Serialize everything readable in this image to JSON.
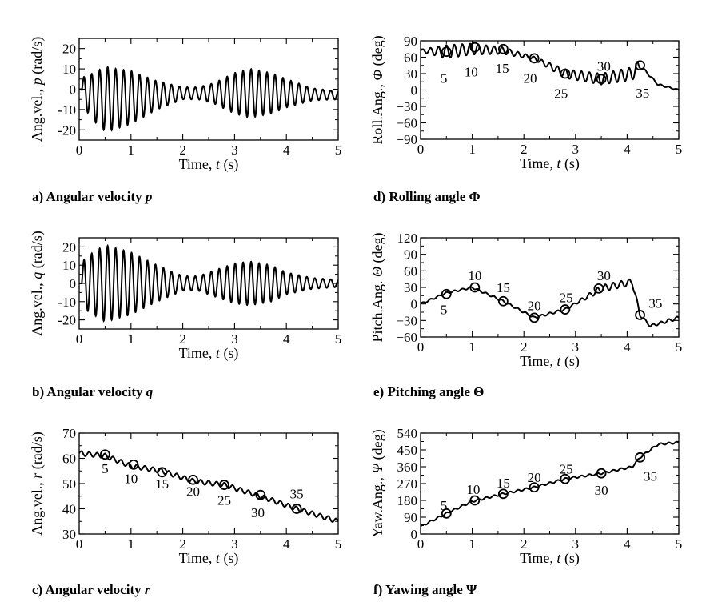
{
  "chart_data": [
    {
      "id": "a",
      "type": "line",
      "caption": "a) Angular velocity",
      "caption_symbol": "p",
      "ylabel_prefix": "Ang.vel., ",
      "ylabel_symbol": "p",
      "ylabel_suffix": " (rad/s)",
      "xlabel_prefix": "Time, ",
      "xlabel_symbol": "t",
      "xlabel_suffix": " (s)",
      "xlim": [
        0,
        5
      ],
      "ylim": [
        -25,
        25
      ],
      "xticks": [
        0,
        1,
        2,
        3,
        4,
        5
      ],
      "yticks": [
        -20,
        -10,
        0,
        10,
        20
      ],
      "ytick_labels": [
        "-20",
        "-10",
        "0",
        "10",
        "20"
      ],
      "signal": {
        "kind": "beating_oscillation",
        "start_time": 0.05,
        "frequency_hz": 6.5,
        "offset": -5,
        "envelope_t": [
          0,
          0.1,
          0.5,
          1.0,
          1.5,
          2.0,
          2.3,
          2.6,
          3.0,
          3.3,
          3.7,
          4.0,
          4.5,
          5.0
        ],
        "envelope_amp": [
          0,
          8,
          16,
          13,
          7,
          3,
          3,
          5,
          10,
          12,
          10,
          7,
          3,
          2
        ],
        "offset_t": [
          0,
          0.3,
          0.6,
          1.0,
          1.5,
          2.0,
          3.0,
          4.0,
          5.0
        ],
        "offset_v": [
          0,
          -4,
          -5,
          -4,
          -3,
          -2,
          -2,
          -2,
          -3
        ]
      },
      "markers": [],
      "annotations": []
    },
    {
      "id": "b",
      "type": "line",
      "caption": "b) Angular velocity",
      "caption_symbol": "q",
      "ylabel_prefix": "Ang.vel., ",
      "ylabel_symbol": "q",
      "ylabel_suffix": " (rad/s)",
      "xlabel_prefix": "Time, ",
      "xlabel_symbol": "t",
      "xlabel_suffix": " (s)",
      "xlim": [
        0,
        5
      ],
      "ylim": [
        -25,
        25
      ],
      "xticks": [
        0,
        1,
        2,
        3,
        4,
        5
      ],
      "yticks": [
        -20,
        -10,
        0,
        10,
        20
      ],
      "ytick_labels": [
        "-20",
        "-10",
        "0",
        "10",
        "20"
      ],
      "signal": {
        "kind": "beating_oscillation",
        "start_time": 0.05,
        "frequency_hz": 6.5,
        "envelope_t": [
          0,
          0.1,
          0.5,
          1.0,
          1.5,
          2.0,
          2.3,
          2.6,
          3.0,
          3.3,
          3.7,
          4.0,
          4.5,
          5.0
        ],
        "envelope_amp": [
          0,
          14,
          21,
          17,
          10,
          4,
          4,
          7,
          11,
          12,
          10,
          6,
          3,
          2
        ],
        "offset_t": [
          0,
          5
        ],
        "offset_v": [
          0,
          0
        ]
      },
      "markers": [],
      "annotations": []
    },
    {
      "id": "c",
      "type": "line",
      "caption": "c) Angular velocity",
      "caption_symbol": "r",
      "ylabel_prefix": "Ang.vel., ",
      "ylabel_symbol": "r",
      "ylabel_suffix": " (rad/s)",
      "xlabel_prefix": "Time, ",
      "xlabel_symbol": "t",
      "xlabel_suffix": " (s)",
      "xlim": [
        0,
        5
      ],
      "ylim": [
        30,
        70
      ],
      "xticks": [
        0,
        1,
        2,
        3,
        4,
        5
      ],
      "yticks": [
        30,
        40,
        50,
        60,
        70
      ],
      "ytick_labels": [
        "30",
        "40",
        "50",
        "60",
        "70"
      ],
      "signal": {
        "kind": "trend_with_ripple",
        "frequency_hz": 6.5,
        "trend_t": [
          0,
          0.5,
          1.0,
          1.6,
          2.2,
          2.8,
          3.5,
          4.2,
          5.0
        ],
        "trend_v": [
          62,
          61,
          57,
          55,
          51,
          49.5,
          45,
          40,
          35
        ],
        "ripple_amp": 0.9
      },
      "markers": [
        {
          "t": 0.5,
          "v": 61.5,
          "label": "5"
        },
        {
          "t": 1.05,
          "v": 57.5,
          "label": "10"
        },
        {
          "t": 1.6,
          "v": 54.5,
          "label": "15"
        },
        {
          "t": 2.2,
          "v": 51.5,
          "label": "20"
        },
        {
          "t": 2.8,
          "v": 49.5,
          "label": "25"
        },
        {
          "t": 3.5,
          "v": 45.5,
          "label": "30"
        },
        {
          "t": 4.2,
          "v": 40,
          "label": "35"
        }
      ],
      "annotations": [
        {
          "t": 0.5,
          "v": 56,
          "label": "5"
        },
        {
          "t": 1.0,
          "v": 52,
          "label": "10"
        },
        {
          "t": 1.6,
          "v": 50,
          "label": "15"
        },
        {
          "t": 2.2,
          "v": 47,
          "label": "20"
        },
        {
          "t": 2.8,
          "v": 43.5,
          "label": "25"
        },
        {
          "t": 3.45,
          "v": 38.5,
          "label": "30"
        },
        {
          "t": 4.2,
          "v": 46,
          "label": "35"
        }
      ]
    },
    {
      "id": "d",
      "type": "line",
      "caption": "d) Rolling angle",
      "caption_symbol": "Φ",
      "ylabel_prefix": "Roll.Ang., ",
      "ylabel_symbol": "Φ",
      "ylabel_suffix": " (deg)",
      "xlabel_prefix": "Time, ",
      "xlabel_symbol": "t",
      "xlabel_suffix": " (s)",
      "xlim": [
        0,
        5
      ],
      "ylim": [
        -90,
        90
      ],
      "xticks": [
        0,
        1,
        2,
        3,
        4,
        5
      ],
      "yticks": [
        -90,
        -60,
        -30,
        0,
        30,
        60,
        90
      ],
      "ytick_labels": [
        "−90",
        "−60",
        "−30",
        "0",
        "30",
        "60",
        "90"
      ],
      "signal": {
        "kind": "trend_with_ripple",
        "frequency_hz": 6.5,
        "trend_t": [
          0,
          0.5,
          1.0,
          1.6,
          2.2,
          2.8,
          3.5,
          4.1,
          4.25,
          4.6,
          5.0
        ],
        "trend_v": [
          72,
          70,
          75,
          72,
          58,
          30,
          20,
          30,
          45,
          10,
          0
        ],
        "ripple_t": [
          0,
          0.5,
          1.0,
          1.6,
          2.2,
          2.8,
          3.5,
          4.2,
          4.3,
          5.0
        ],
        "ripple_amp": [
          2,
          12,
          10,
          6,
          3,
          8,
          10,
          12,
          2,
          1
        ]
      },
      "markers": [
        {
          "t": 0.5,
          "v": 70,
          "label": "5"
        },
        {
          "t": 1.05,
          "v": 78,
          "label": "10"
        },
        {
          "t": 1.6,
          "v": 75,
          "label": "15"
        },
        {
          "t": 2.2,
          "v": 58,
          "label": "20"
        },
        {
          "t": 2.8,
          "v": 30,
          "label": "25"
        },
        {
          "t": 3.5,
          "v": 20,
          "label": "30"
        },
        {
          "t": 4.25,
          "v": 45,
          "label": "35"
        }
      ],
      "annotations": [
        {
          "t": 0.45,
          "v": 22,
          "label": "5"
        },
        {
          "t": 0.98,
          "v": 34,
          "label": "10"
        },
        {
          "t": 1.58,
          "v": 40,
          "label": "15"
        },
        {
          "t": 2.12,
          "v": 22,
          "label": "20"
        },
        {
          "t": 2.72,
          "v": -6,
          "label": "25"
        },
        {
          "t": 3.55,
          "v": 44,
          "label": "30"
        },
        {
          "t": 4.3,
          "v": -5,
          "label": "35"
        }
      ]
    },
    {
      "id": "e",
      "type": "line",
      "caption": "e) Pitching angle",
      "caption_symbol": "Θ",
      "ylabel_prefix": "Pitch.Ang. ",
      "ylabel_symbol": "Θ",
      "ylabel_suffix": " (deg)",
      "xlabel_prefix": "Time, ",
      "xlabel_symbol": "t",
      "xlabel_suffix": " (s)",
      "xlim": [
        0,
        5
      ],
      "ylim": [
        -60,
        120
      ],
      "xticks": [
        0,
        1,
        2,
        3,
        4,
        5
      ],
      "yticks": [
        -60,
        -30,
        0,
        30,
        60,
        90,
        120
      ],
      "ytick_labels": [
        "−60",
        "−30",
        "0",
        "30",
        "60",
        "90",
        "120"
      ],
      "signal": {
        "kind": "trend_with_ripple",
        "frequency_hz": 6.5,
        "trend_t": [
          0,
          0.5,
          1.0,
          1.6,
          2.2,
          2.8,
          3.5,
          4.1,
          4.25,
          4.45,
          5.0
        ],
        "trend_v": [
          0,
          20,
          30,
          5,
          -25,
          -10,
          28,
          40,
          -20,
          -40,
          -25
        ],
        "ripple_t": [
          0,
          3.0,
          3.5,
          4.1,
          4.3,
          5.0
        ],
        "ripple_amp": [
          1.5,
          2,
          6,
          6,
          2,
          3
        ]
      },
      "markers": [
        {
          "t": 0.5,
          "v": 18,
          "label": "5"
        },
        {
          "t": 1.05,
          "v": 30,
          "label": "10"
        },
        {
          "t": 1.6,
          "v": 5,
          "label": "15"
        },
        {
          "t": 2.2,
          "v": -25,
          "label": "20"
        },
        {
          "t": 2.8,
          "v": -10,
          "label": "25"
        },
        {
          "t": 3.45,
          "v": 28,
          "label": "30"
        },
        {
          "t": 4.25,
          "v": -20,
          "label": "35"
        }
      ],
      "annotations": [
        {
          "t": 0.45,
          "v": -10,
          "label": "5"
        },
        {
          "t": 1.05,
          "v": 52,
          "label": "10"
        },
        {
          "t": 1.6,
          "v": 30,
          "label": "15"
        },
        {
          "t": 2.2,
          "v": -3,
          "label": "20"
        },
        {
          "t": 2.82,
          "v": 12,
          "label": "25"
        },
        {
          "t": 3.55,
          "v": 52,
          "label": "30"
        },
        {
          "t": 4.55,
          "v": 2,
          "label": "35"
        }
      ]
    },
    {
      "id": "f",
      "type": "line",
      "caption": "f) Yawing angle",
      "caption_symbol": "Ψ",
      "ylabel_prefix": "Yaw.Ang., ",
      "ylabel_symbol": "Ψ",
      "ylabel_suffix": " (deg)",
      "xlabel_prefix": "Time, ",
      "xlabel_symbol": "t",
      "xlabel_suffix": " (s)",
      "xlim": [
        0,
        5
      ],
      "ylim": [
        0,
        540
      ],
      "xticks": [
        0,
        1,
        2,
        3,
        4,
        5
      ],
      "yticks": [
        0,
        90,
        180,
        270,
        360,
        450,
        540
      ],
      "ytick_labels": [
        "0",
        "90",
        "180",
        "270",
        "360",
        "450",
        "540"
      ],
      "signal": {
        "kind": "trend_with_ripple",
        "frequency_hz": 6.5,
        "trend_t": [
          0,
          0.5,
          1.0,
          1.6,
          2.2,
          2.8,
          3.5,
          4.1,
          4.25,
          4.6,
          5.0
        ],
        "trend_v": [
          40,
          110,
          175,
          215,
          250,
          295,
          325,
          360,
          410,
          480,
          490
        ],
        "ripple_amp": 5
      },
      "markers": [
        {
          "t": 0.5,
          "v": 110,
          "label": "5"
        },
        {
          "t": 1.05,
          "v": 180,
          "label": "10"
        },
        {
          "t": 1.6,
          "v": 215,
          "label": "15"
        },
        {
          "t": 2.2,
          "v": 250,
          "label": "20"
        },
        {
          "t": 2.8,
          "v": 295,
          "label": "25"
        },
        {
          "t": 3.5,
          "v": 325,
          "label": "30"
        },
        {
          "t": 4.25,
          "v": 410,
          "label": "35"
        }
      ],
      "annotations": [
        {
          "t": 0.45,
          "v": 155,
          "label": "5"
        },
        {
          "t": 1.02,
          "v": 240,
          "label": "10"
        },
        {
          "t": 1.6,
          "v": 275,
          "label": "15"
        },
        {
          "t": 2.2,
          "v": 305,
          "label": "20"
        },
        {
          "t": 2.82,
          "v": 350,
          "label": "25"
        },
        {
          "t": 3.5,
          "v": 235,
          "label": "30"
        },
        {
          "t": 4.45,
          "v": 310,
          "label": "35"
        }
      ]
    }
  ]
}
